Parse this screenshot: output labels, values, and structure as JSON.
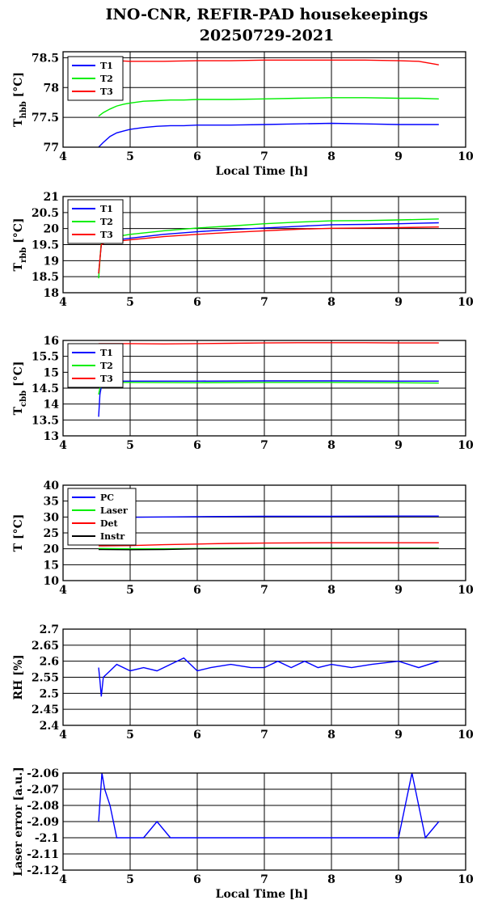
{
  "title": {
    "line1": "INO-CNR, REFIR-PAD housekeepings",
    "line2": "20250729-2021"
  },
  "colors": {
    "blue": "#0000ff",
    "green": "#00ee00",
    "red": "#ff0000",
    "black": "#000000"
  },
  "chart_data": [
    {
      "id": "hbb",
      "type": "line",
      "ylabel": {
        "main": "T",
        "sub": "hbb",
        "unit": "[°C]"
      },
      "xlabel": "Local Time [h]",
      "xlim": [
        4,
        10
      ],
      "ylim": [
        77,
        78.6
      ],
      "xticks": [
        "4",
        "5",
        "6",
        "7",
        "8",
        "9",
        "10"
      ],
      "yticks": [
        "77",
        "77.5",
        "78",
        "78.5"
      ],
      "yticks_values": [
        77,
        77.5,
        78,
        78.5
      ],
      "grid": true,
      "legend_position": "top-left",
      "series": [
        {
          "name": "T1",
          "color": "#0000ff",
          "x": [
            4.53,
            4.6,
            4.7,
            4.8,
            4.9,
            5.0,
            5.2,
            5.4,
            5.6,
            5.8,
            6.0,
            6.5,
            7.0,
            7.5,
            8.0,
            8.5,
            9.0,
            9.3,
            9.6
          ],
          "y": [
            77.0,
            77.08,
            77.18,
            77.24,
            77.27,
            77.3,
            77.33,
            77.35,
            77.36,
            77.36,
            77.37,
            77.37,
            77.38,
            77.39,
            77.4,
            77.39,
            77.38,
            77.38,
            77.38
          ]
        },
        {
          "name": "T2",
          "color": "#00ee00",
          "x": [
            4.53,
            4.6,
            4.7,
            4.8,
            4.9,
            5.0,
            5.2,
            5.4,
            5.6,
            5.8,
            6.0,
            6.5,
            7.0,
            7.5,
            8.0,
            8.5,
            9.0,
            9.3,
            9.6
          ],
          "y": [
            77.52,
            77.58,
            77.64,
            77.69,
            77.72,
            77.74,
            77.77,
            77.78,
            77.79,
            77.79,
            77.8,
            77.8,
            77.81,
            77.82,
            77.83,
            77.83,
            77.82,
            77.82,
            77.81
          ]
        },
        {
          "name": "T3",
          "color": "#ff0000",
          "x": [
            4.53,
            4.6,
            4.8,
            5.0,
            5.5,
            6.0,
            6.5,
            7.0,
            7.5,
            8.0,
            8.5,
            9.0,
            9.3,
            9.5,
            9.6
          ],
          "y": [
            78.45,
            78.45,
            78.45,
            78.44,
            78.44,
            78.45,
            78.45,
            78.46,
            78.46,
            78.46,
            78.46,
            78.45,
            78.44,
            78.4,
            78.38
          ]
        }
      ]
    },
    {
      "id": "rbb",
      "type": "line",
      "ylabel": {
        "main": "T",
        "sub": "rbb",
        "unit": "[°C]"
      },
      "xlabel": "",
      "xlim": [
        4,
        10
      ],
      "ylim": [
        18,
        21
      ],
      "xticks": [
        "4",
        "5",
        "6",
        "7",
        "8",
        "9",
        "10"
      ],
      "yticks": [
        "18",
        "18.5",
        "19",
        "19.5",
        "20",
        "20.5",
        "21"
      ],
      "yticks_values": [
        18,
        18.5,
        19,
        19.5,
        20,
        20.5,
        21
      ],
      "grid": true,
      "legend_position": "top-left",
      "series": [
        {
          "name": "T1",
          "color": "#0000ff",
          "x": [
            4.53,
            4.57,
            4.62,
            4.7,
            5.0,
            5.5,
            6.0,
            6.5,
            7.0,
            7.5,
            8.0,
            8.5,
            9.0,
            9.6
          ],
          "y": [
            18.6,
            19.5,
            19.6,
            19.62,
            19.7,
            19.82,
            19.9,
            19.97,
            20.02,
            20.07,
            20.12,
            20.13,
            20.15,
            20.18
          ]
        },
        {
          "name": "T2",
          "color": "#00ee00",
          "x": [
            4.53,
            4.57,
            4.62,
            4.7,
            5.0,
            5.5,
            6.0,
            6.5,
            7.0,
            7.5,
            8.0,
            8.5,
            9.0,
            9.6
          ],
          "y": [
            18.45,
            19.6,
            19.7,
            19.72,
            19.82,
            19.93,
            20.02,
            20.08,
            20.15,
            20.2,
            20.24,
            20.25,
            20.27,
            20.3
          ]
        },
        {
          "name": "T3",
          "color": "#ff0000",
          "x": [
            4.53,
            4.57,
            4.62,
            4.7,
            5.0,
            5.5,
            6.0,
            6.5,
            7.0,
            7.5,
            8.0,
            8.5,
            9.0,
            9.6
          ],
          "y": [
            18.6,
            19.5,
            19.55,
            19.58,
            19.65,
            19.75,
            19.82,
            19.88,
            19.93,
            19.98,
            20.01,
            20.02,
            20.03,
            20.05
          ]
        }
      ]
    },
    {
      "id": "cbb",
      "type": "line",
      "ylabel": {
        "main": "T",
        "sub": "cbb",
        "unit": "[°C]"
      },
      "xlabel": "",
      "xlim": [
        4,
        10
      ],
      "ylim": [
        13,
        16
      ],
      "xticks": [
        "4",
        "5",
        "6",
        "7",
        "8",
        "9",
        "10"
      ],
      "yticks": [
        "13",
        "13.5",
        "14",
        "14.5",
        "15",
        "15.5",
        "16"
      ],
      "yticks_values": [
        13,
        13.5,
        14,
        14.5,
        15,
        15.5,
        16
      ],
      "grid": true,
      "legend_position": "top-left",
      "series": [
        {
          "name": "T1",
          "color": "#0000ff",
          "x": [
            4.53,
            4.55,
            4.58,
            4.62,
            4.7,
            5.0,
            6.0,
            7.0,
            8.0,
            9.0,
            9.6
          ],
          "y": [
            13.6,
            14.3,
            14.65,
            14.72,
            14.72,
            14.72,
            14.72,
            14.73,
            14.73,
            14.72,
            14.72
          ]
        },
        {
          "name": "T2",
          "color": "#00ee00",
          "x": [
            4.53,
            4.55,
            4.58,
            4.62,
            4.7,
            5.0,
            6.0,
            7.0,
            8.0,
            9.0,
            9.6
          ],
          "y": [
            14.3,
            14.5,
            14.64,
            14.68,
            14.68,
            14.68,
            14.67,
            14.68,
            14.68,
            14.67,
            14.66
          ]
        },
        {
          "name": "T3",
          "color": "#ff0000",
          "x": [
            4.53,
            4.6,
            5.0,
            5.5,
            6.0,
            6.5,
            7.0,
            7.5,
            8.0,
            8.5,
            9.0,
            9.6
          ],
          "y": [
            15.9,
            15.9,
            15.9,
            15.89,
            15.9,
            15.91,
            15.92,
            15.93,
            15.93,
            15.93,
            15.92,
            15.92
          ]
        }
      ]
    },
    {
      "id": "temps",
      "type": "line",
      "ylabel": {
        "main": "T [°C]",
        "sub": "",
        "unit": ""
      },
      "xlabel": "",
      "xlim": [
        4,
        10
      ],
      "ylim": [
        10,
        40
      ],
      "xticks": [
        "4",
        "5",
        "6",
        "7",
        "8",
        "9",
        "10"
      ],
      "yticks": [
        "10",
        "15",
        "20",
        "25",
        "30",
        "35",
        "40"
      ],
      "yticks_values": [
        10,
        15,
        20,
        25,
        30,
        35,
        40
      ],
      "grid": true,
      "legend_position": "top-left",
      "series": [
        {
          "name": "PC",
          "color": "#0000ff",
          "x": [
            4.53,
            4.7,
            5.0,
            5.5,
            6.0,
            7.0,
            8.0,
            9.0,
            9.6
          ],
          "y": [
            29.6,
            29.8,
            29.9,
            30.0,
            30.1,
            30.2,
            30.2,
            30.3,
            30.3
          ]
        },
        {
          "name": "Laser",
          "color": "#00ee00",
          "x": [
            4.53,
            5.0,
            5.5,
            6.0,
            7.0,
            8.0,
            9.0,
            9.6
          ],
          "y": [
            20.1,
            20.0,
            20.0,
            20.1,
            20.2,
            20.2,
            20.2,
            20.2
          ]
        },
        {
          "name": "Det",
          "color": "#ff0000",
          "x": [
            4.53,
            5.0,
            5.5,
            6.0,
            6.5,
            7.0,
            8.0,
            9.0,
            9.6
          ],
          "y": [
            20.9,
            21.0,
            21.3,
            21.5,
            21.7,
            21.8,
            21.9,
            21.9,
            21.9
          ]
        },
        {
          "name": "Instr",
          "color": "#000000",
          "x": [
            4.53,
            5.0,
            5.5,
            6.0,
            7.0,
            8.0,
            9.0,
            9.6
          ],
          "y": [
            19.8,
            19.7,
            19.8,
            20.0,
            20.1,
            20.1,
            20.1,
            20.1
          ]
        }
      ]
    },
    {
      "id": "rh",
      "type": "line",
      "ylabel": {
        "main": "RH [%]",
        "sub": "",
        "unit": ""
      },
      "xlabel": "",
      "xlim": [
        4,
        10
      ],
      "ylim": [
        2.4,
        2.7
      ],
      "xticks": [
        "4",
        "5",
        "6",
        "7",
        "8",
        "9",
        "10"
      ],
      "yticks": [
        "2.4",
        "2.45",
        "2.5",
        "2.55",
        "2.6",
        "2.65",
        "2.7"
      ],
      "yticks_values": [
        2.4,
        2.45,
        2.5,
        2.55,
        2.6,
        2.65,
        2.7
      ],
      "grid": true,
      "legend_position": "none",
      "series": [
        {
          "name": "",
          "color": "#0000ff",
          "x": [
            4.53,
            4.55,
            4.57,
            4.6,
            4.7,
            4.8,
            5.0,
            5.2,
            5.4,
            5.6,
            5.8,
            6.0,
            6.2,
            6.5,
            6.8,
            7.0,
            7.2,
            7.4,
            7.6,
            7.8,
            8.0,
            8.3,
            8.6,
            9.0,
            9.3,
            9.6
          ],
          "y": [
            2.58,
            2.54,
            2.49,
            2.55,
            2.57,
            2.59,
            2.57,
            2.58,
            2.57,
            2.59,
            2.61,
            2.57,
            2.58,
            2.59,
            2.58,
            2.58,
            2.6,
            2.58,
            2.6,
            2.58,
            2.59,
            2.58,
            2.59,
            2.6,
            2.58,
            2.6
          ]
        }
      ]
    },
    {
      "id": "laser",
      "type": "line",
      "ylabel": {
        "main": "Laser error [a.u.]",
        "sub": "",
        "unit": ""
      },
      "xlabel": "Local Time [h]",
      "xlim": [
        4,
        10
      ],
      "ylim": [
        -2.12,
        -2.06
      ],
      "xticks": [
        "4",
        "5",
        "6",
        "7",
        "8",
        "9",
        "10"
      ],
      "yticks": [
        "-2.12",
        "-2.11",
        "-2.1",
        "-2.09",
        "-2.08",
        "-2.07",
        "-2.06"
      ],
      "yticks_values": [
        -2.12,
        -2.11,
        -2.1,
        -2.09,
        -2.08,
        -2.07,
        -2.06
      ],
      "grid": true,
      "legend_position": "none",
      "series": [
        {
          "name": "",
          "color": "#0000ff",
          "x": [
            4.53,
            4.58,
            4.62,
            4.7,
            4.8,
            5.0,
            5.2,
            5.4,
            5.6,
            5.8,
            6.0,
            6.3,
            6.6,
            7.0,
            7.3,
            7.6,
            8.0,
            8.3,
            8.6,
            9.0,
            9.2,
            9.4,
            9.6
          ],
          "y": [
            -2.09,
            -2.06,
            -2.07,
            -2.08,
            -2.1,
            -2.1,
            -2.1,
            -2.09,
            -2.1,
            -2.1,
            -2.1,
            -2.1,
            -2.1,
            -2.1,
            -2.1,
            -2.1,
            -2.1,
            -2.1,
            -2.1,
            -2.1,
            -2.06,
            -2.1,
            -2.09
          ]
        }
      ]
    }
  ]
}
